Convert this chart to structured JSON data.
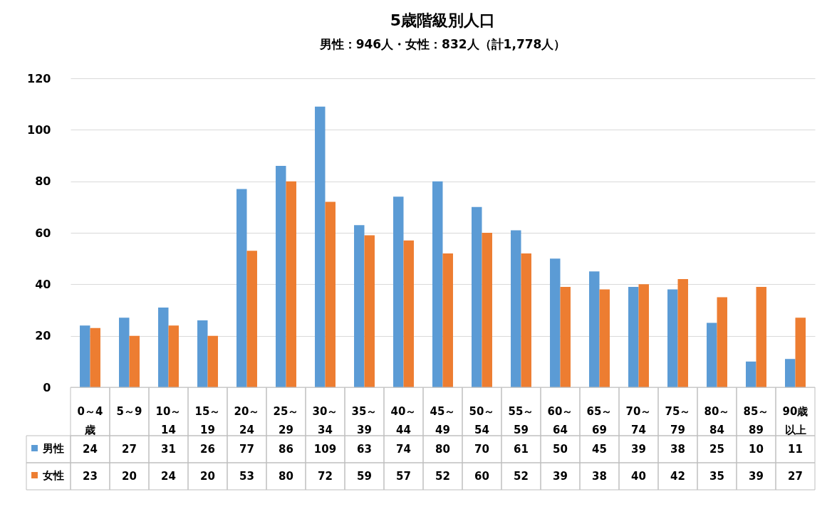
{
  "chart_data": {
    "type": "bar",
    "title": "5歳階級別人口",
    "subtitle": "男性：946人・女性：832人（計1,778人）",
    "categories": [
      "0～4歳",
      "5～9",
      "10～14",
      "15～19",
      "20～24",
      "25～29",
      "30～34",
      "35～39",
      "40～44",
      "45～49",
      "50～54",
      "55～59",
      "60～64",
      "65～69",
      "70～74",
      "75～79",
      "80～84",
      "85～89",
      "90歳以上"
    ],
    "series": [
      {
        "name": "男性",
        "color": "#5b9bd5",
        "values": [
          24,
          27,
          31,
          26,
          77,
          86,
          109,
          63,
          74,
          80,
          70,
          61,
          50,
          45,
          39,
          38,
          25,
          10,
          11
        ]
      },
      {
        "name": "女性",
        "color": "#ed7d31",
        "values": [
          23,
          20,
          24,
          20,
          53,
          80,
          72,
          59,
          57,
          52,
          60,
          52,
          39,
          38,
          40,
          42,
          35,
          39,
          27
        ]
      }
    ],
    "ylim": [
      0,
      120
    ],
    "yticks": [
      0,
      20,
      40,
      60,
      80,
      100,
      120
    ],
    "grid": "y",
    "legend": "bottom left",
    "data_labels": true
  }
}
